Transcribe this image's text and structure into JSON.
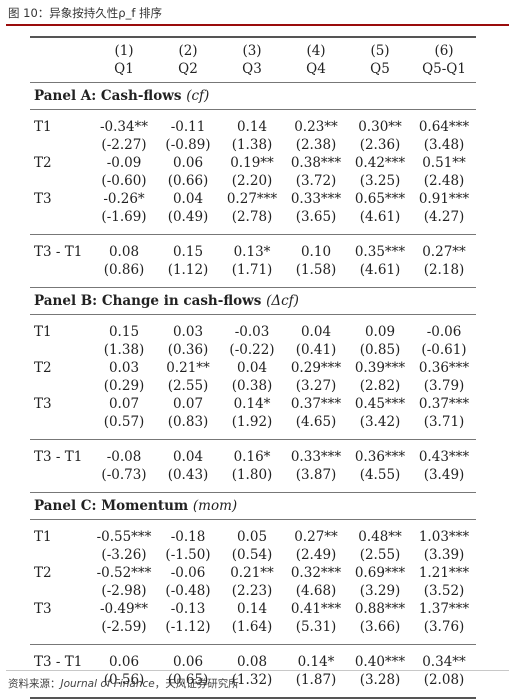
{
  "figure_title": "图 10：异象按持久性ρ_f 排序",
  "columns": [
    {
      "num": "(1)",
      "name": "Q1"
    },
    {
      "num": "(2)",
      "name": "Q2"
    },
    {
      "num": "(3)",
      "name": "Q3"
    },
    {
      "num": "(4)",
      "name": "Q4"
    },
    {
      "num": "(5)",
      "name": "Q5"
    },
    {
      "num": "(6)",
      "name": "Q5-Q1"
    }
  ],
  "panels": [
    {
      "title": "Panel A: Cash-flows",
      "symbol": "(cf)",
      "rows": [
        {
          "label": "T1",
          "coef": [
            "-0.34**",
            "-0.11",
            "0.14",
            "0.23**",
            "0.30**",
            "0.64***"
          ],
          "t": [
            "(-2.27)",
            "(-0.89)",
            "(1.38)",
            "(2.38)",
            "(2.36)",
            "(3.48)"
          ]
        },
        {
          "label": "T2",
          "coef": [
            "-0.09",
            "0.06",
            "0.19**",
            "0.38***",
            "0.42***",
            "0.51**"
          ],
          "t": [
            "(-0.60)",
            "(0.66)",
            "(2.20)",
            "(3.72)",
            "(3.25)",
            "(2.48)"
          ]
        },
        {
          "label": "T3",
          "coef": [
            "-0.26*",
            "0.04",
            "0.27***",
            "0.33***",
            "0.65***",
            "0.91***"
          ],
          "t": [
            "(-1.69)",
            "(0.49)",
            "(2.78)",
            "(3.65)",
            "(4.61)",
            "(4.27)"
          ]
        }
      ],
      "diff": {
        "label": "T3 - T1",
        "coef": [
          "0.08",
          "0.15",
          "0.13*",
          "0.10",
          "0.35***",
          "0.27**"
        ],
        "t": [
          "(0.86)",
          "(1.12)",
          "(1.71)",
          "(1.58)",
          "(4.61)",
          "(2.18)"
        ]
      }
    },
    {
      "title": "Panel B: Change in cash-flows",
      "symbol": "(Δcf)",
      "rows": [
        {
          "label": "T1",
          "coef": [
            "0.15",
            "0.03",
            "-0.03",
            "0.04",
            "0.09",
            "-0.06"
          ],
          "t": [
            "(1.38)",
            "(0.36)",
            "(-0.22)",
            "(0.41)",
            "(0.85)",
            "(-0.61)"
          ]
        },
        {
          "label": "T2",
          "coef": [
            "0.03",
            "0.21**",
            "0.04",
            "0.29***",
            "0.39***",
            "0.36***"
          ],
          "t": [
            "(0.29)",
            "(2.55)",
            "(0.38)",
            "(3.27)",
            "(2.82)",
            "(3.79)"
          ]
        },
        {
          "label": "T3",
          "coef": [
            "0.07",
            "0.07",
            "0.14*",
            "0.37***",
            "0.45***",
            "0.37***"
          ],
          "t": [
            "(0.57)",
            "(0.83)",
            "(1.92)",
            "(4.65)",
            "(3.42)",
            "(3.71)"
          ]
        }
      ],
      "diff": {
        "label": "T3 - T1",
        "coef": [
          "-0.08",
          "0.04",
          "0.16*",
          "0.33***",
          "0.36***",
          "0.43***"
        ],
        "t": [
          "(-0.73)",
          "(0.43)",
          "(1.80)",
          "(3.87)",
          "(4.55)",
          "(3.49)"
        ]
      }
    },
    {
      "title": "Panel C: Momentum",
      "symbol": "(mom)",
      "rows": [
        {
          "label": "T1",
          "coef": [
            "-0.55***",
            "-0.18",
            "0.05",
            "0.27**",
            "0.48**",
            "1.03***"
          ],
          "t": [
            "(-3.26)",
            "(-1.50)",
            "(0.54)",
            "(2.49)",
            "(2.55)",
            "(3.39)"
          ]
        },
        {
          "label": "T2",
          "coef": [
            "-0.52***",
            "-0.06",
            "0.21**",
            "0.32***",
            "0.69***",
            "1.21***"
          ],
          "t": [
            "(-2.98)",
            "(-0.48)",
            "(2.23)",
            "(4.68)",
            "(3.29)",
            "(3.52)"
          ]
        },
        {
          "label": "T3",
          "coef": [
            "-0.49**",
            "-0.13",
            "0.14",
            "0.41***",
            "0.88***",
            "1.37***"
          ],
          "t": [
            "(-2.59)",
            "(-1.12)",
            "(1.64)",
            "(5.31)",
            "(3.66)",
            "(3.76)"
          ]
        }
      ],
      "diff": {
        "label": "T3 - T1",
        "coef": [
          "0.06",
          "0.06",
          "0.08",
          "0.14*",
          "0.40***",
          "0.34**"
        ],
        "t": [
          "(0.56)",
          "(0.65)",
          "(1.32)",
          "(1.87)",
          "(3.28)",
          "(2.08)"
        ]
      }
    }
  ],
  "footer": {
    "prefix": "资料来源：",
    "journal": "Journal of Finance",
    "suffix": "，天风证券研究所"
  }
}
